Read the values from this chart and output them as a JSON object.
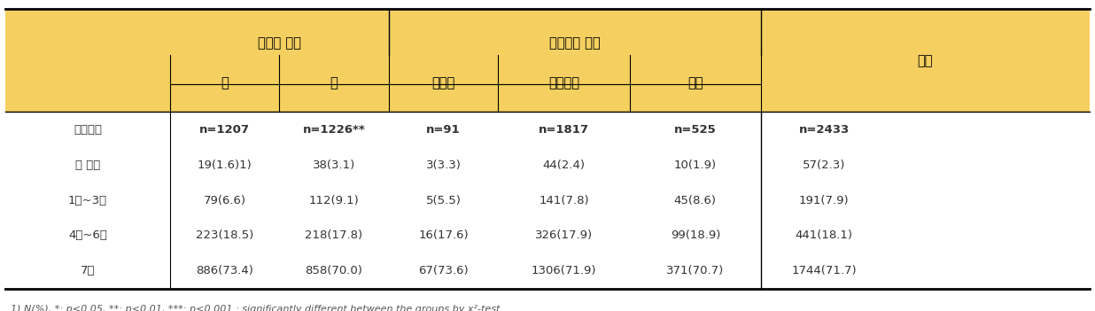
{
  "header_bg_color": "#F5D060",
  "body_bg_color": "#FFFFFF",
  "border_color": "#000000",
  "col_group1_label": "성별에 따라",
  "col_group2_label": "비만도에 따라",
  "col_last_label": "전체",
  "subheaders": [
    "남",
    "여",
    "저체중",
    "정상체중",
    "비만"
  ],
  "row0_label": "아침식사",
  "row0": [
    "n=1207",
    "n=1226**",
    "n=91",
    "n=1817",
    "n=525",
    "n=2433"
  ],
  "row1_label": "안 먹음",
  "row1": [
    "19(1.6)1)",
    "38(3.1)",
    "3(3.3)",
    "44(2.4)",
    "10(1.9)",
    "57(2.3)"
  ],
  "row2_label": "1회~3회",
  "row2": [
    "79(6.6)",
    "112(9.1)",
    "5(5.5)",
    "141(7.8)",
    "45(8.6)",
    "191(7.9)"
  ],
  "row3_label": "4회~6회",
  "row3": [
    "223(18.5)",
    "218(17.8)",
    "16(17.6)",
    "326(17.9)",
    "99(18.9)",
    "441(18.1)"
  ],
  "row4_label": "7회",
  "row4": [
    "886(73.4)",
    "858(70.0)",
    "67(73.6)",
    "1306(71.9)",
    "371(70.7)",
    "1744(71.7)"
  ],
  "footnote": "1) N(%), *: p<0.05, **: p<0.01, ***: p<0.001 : significantly different between the groups by x²-test."
}
